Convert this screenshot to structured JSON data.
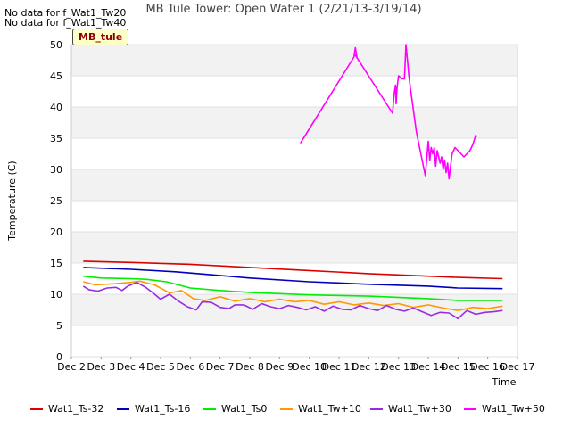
{
  "notes": [
    "No data for f_Wat1_Tw20",
    "No data for f_Wat1_Tw40"
  ],
  "badge": "MB_tule",
  "chart_data": {
    "type": "line",
    "title": "MB Tule Tower: Open Water 1 (2/21/13-3/19/14)",
    "xlabel": "Time",
    "ylabel": "Temperature (C)",
    "x_ticks": [
      "Dec 2",
      "Dec 3",
      "Dec 4",
      "Dec 5",
      "Dec 6",
      "Dec 7",
      "Dec 8",
      "Dec 9",
      "Dec 10",
      "Dec 11",
      "Dec 12",
      "Dec 13",
      "Dec 14",
      "Dec 15",
      "Dec 16",
      "Dec 17"
    ],
    "xlim": [
      0,
      15
    ],
    "ylim": [
      0,
      50
    ],
    "y_ticks": [
      0,
      5,
      10,
      15,
      20,
      25,
      30,
      35,
      40,
      45,
      50
    ],
    "grid": true,
    "series": [
      {
        "name": "Wat1_Ts-32",
        "color": "#dd0000",
        "x": [
          0.4,
          2,
          4,
          6,
          8,
          10,
          12,
          13,
          14.5
        ],
        "y": [
          15.3,
          15.1,
          14.8,
          14.3,
          13.8,
          13.3,
          12.9,
          12.7,
          12.5
        ]
      },
      {
        "name": "Wat1_Ts-16",
        "color": "#0000bb",
        "x": [
          0.4,
          2,
          3.5,
          4.5,
          6,
          8,
          10,
          12,
          13,
          14.5
        ],
        "y": [
          14.3,
          14.0,
          13.6,
          13.2,
          12.6,
          12.0,
          11.6,
          11.3,
          11.0,
          10.9
        ]
      },
      {
        "name": "Wat1_Ts0",
        "color": "#00ee00",
        "x": [
          0.4,
          1,
          2,
          2.5,
          3.2,
          4,
          5,
          6,
          8,
          10,
          12,
          13,
          14.5
        ],
        "y": [
          12.9,
          12.6,
          12.5,
          12.4,
          12.0,
          11.0,
          10.6,
          10.3,
          9.9,
          9.7,
          9.3,
          9.0,
          9.0
        ]
      },
      {
        "name": "Wat1_Tw+10",
        "color": "#ff9900",
        "x": [
          0.4,
          0.8,
          1.5,
          2.0,
          2.3,
          2.8,
          3.3,
          3.7,
          4.1,
          4.5,
          5.0,
          5.5,
          6.0,
          6.5,
          7.0,
          7.5,
          8.0,
          8.5,
          9.0,
          9.5,
          10.0,
          10.5,
          11.0,
          11.5,
          12.0,
          12.5,
          13.0,
          13.5,
          14.0,
          14.5
        ],
        "y": [
          12.0,
          11.5,
          11.7,
          11.9,
          12.1,
          11.5,
          10.2,
          10.6,
          9.3,
          9.0,
          9.6,
          8.9,
          9.3,
          8.8,
          9.2,
          8.8,
          9.0,
          8.4,
          8.8,
          8.3,
          8.6,
          8.2,
          8.5,
          7.9,
          8.3,
          7.8,
          7.4,
          7.9,
          7.7,
          8.1
        ]
      },
      {
        "name": "Wat1_Tw+30",
        "color": "#9a2be2",
        "x": [
          0.4,
          0.6,
          0.9,
          1.2,
          1.5,
          1.7,
          1.9,
          2.2,
          2.5,
          2.8,
          3.0,
          3.3,
          3.6,
          3.9,
          4.2,
          4.4,
          4.7,
          5.0,
          5.3,
          5.5,
          5.8,
          6.1,
          6.4,
          6.7,
          7.0,
          7.3,
          7.6,
          7.9,
          8.2,
          8.5,
          8.8,
          9.1,
          9.4,
          9.7,
          10.0,
          10.3,
          10.6,
          10.9,
          11.2,
          11.5,
          11.8,
          12.1,
          12.4,
          12.7,
          13.0,
          13.3,
          13.6,
          13.9,
          14.2,
          14.5
        ],
        "y": [
          11.3,
          10.7,
          10.5,
          11.0,
          11.1,
          10.6,
          11.3,
          11.9,
          11.1,
          10.0,
          9.2,
          10.0,
          8.9,
          8.0,
          7.5,
          8.8,
          8.7,
          7.9,
          7.7,
          8.3,
          8.3,
          7.6,
          8.5,
          8.0,
          7.7,
          8.2,
          7.9,
          7.5,
          8.0,
          7.3,
          8.1,
          7.6,
          7.5,
          8.2,
          7.7,
          7.4,
          8.2,
          7.6,
          7.3,
          7.8,
          7.2,
          6.6,
          7.1,
          7.0,
          6.1,
          7.4,
          6.8,
          7.1,
          7.2,
          7.4
        ]
      },
      {
        "name": "Wat1_Tw+50",
        "color": "#ff00ff",
        "x": [
          7.7,
          9.5,
          9.55,
          9.6,
          9.55,
          10.8,
          10.85,
          10.9,
          10.92,
          10.95,
          11.0,
          11.05,
          11.1,
          11.2,
          11.25,
          11.3,
          11.35,
          11.4,
          11.6,
          11.9,
          12.0,
          12.05,
          12.1,
          12.15,
          12.2,
          12.25,
          12.3,
          12.35,
          12.4,
          12.45,
          12.5,
          12.55,
          12.6,
          12.65,
          12.7,
          12.8,
          12.9,
          13.0,
          13.1,
          13.2,
          13.3,
          13.4,
          13.5,
          13.6,
          13.62
        ],
        "y": [
          34.2,
          48.0,
          49.5,
          48.0,
          48.3,
          39.0,
          42.0,
          43.5,
          40.5,
          43.0,
          45.0,
          44.8,
          44.5,
          44.5,
          50.0,
          47.5,
          45.0,
          43.0,
          36.0,
          29.0,
          34.5,
          31.5,
          33.5,
          32.5,
          33.5,
          30.5,
          33.0,
          32.0,
          31.0,
          32.0,
          30.0,
          31.5,
          29.5,
          31.0,
          28.5,
          32.5,
          33.5,
          33.0,
          32.5,
          32.0,
          32.5,
          33.0,
          34.0,
          35.5,
          35.2
        ]
      }
    ]
  }
}
